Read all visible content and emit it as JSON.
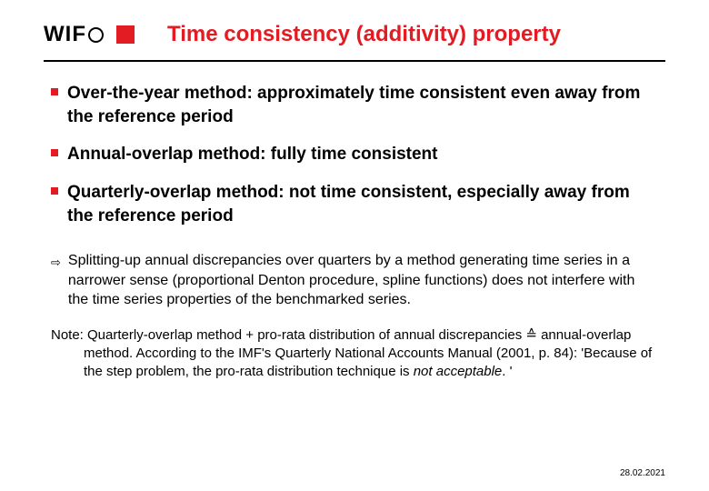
{
  "logo": {
    "text": "WIF"
  },
  "title": "Time consistency (additivity) property",
  "bullets": [
    {
      "text": "Over-the-year method: approximately time consistent even away from the reference period"
    },
    {
      "text": "Annual-overlap method: fully time consistent"
    },
    {
      "text": "Quarterly-overlap method: not time consistent, especially away from the reference period"
    }
  ],
  "arrow_text": "Splitting-up annual discrepancies over quarters by a method generating time series in a narrower sense (proportional Denton procedure, spline functions) does not interfere with the time series properties of the benchmarked series.",
  "note_prefix": "Note: Quarterly-overlap method + pro-rata distribution of annual discrepancies ≙ annual-overlap method. According to the IMF's Quarterly National Accounts Manual (2001, p. 84): 'Because of the step problem, the pro-rata distribution technique is ",
  "note_italic": "not acceptable",
  "note_suffix": ". '",
  "date": "28.02.2021",
  "colors": {
    "accent": "#e31b23",
    "text": "#000000",
    "background": "#ffffff"
  }
}
